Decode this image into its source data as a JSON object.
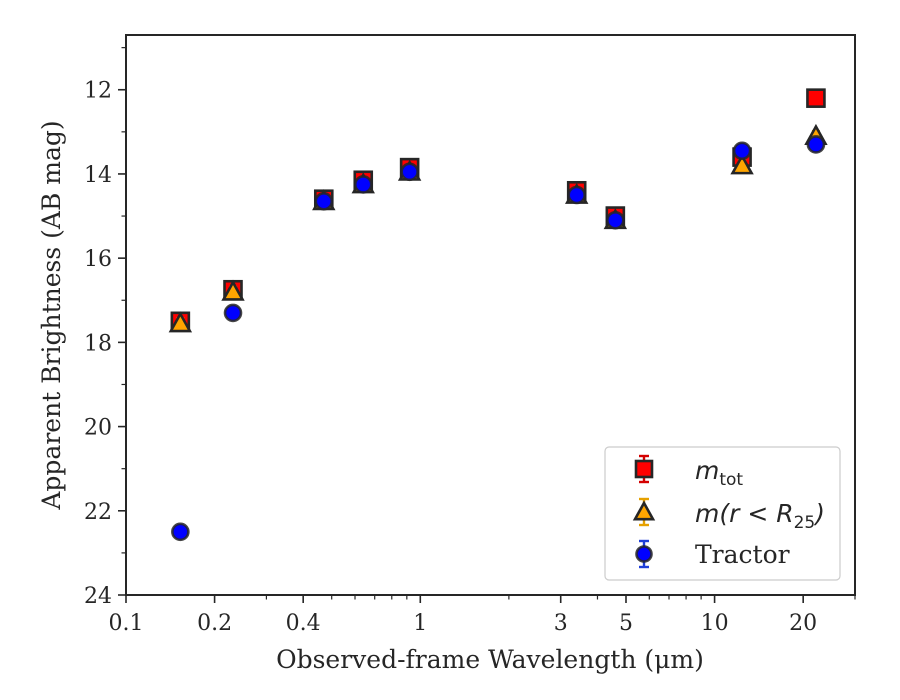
{
  "chart_data": {
    "type": "scatter",
    "xlabel": "Observed-frame Wavelength (μm)",
    "ylabel": "Apparent Brightness (AB mag)",
    "xscale": "log",
    "xlim": [
      0.1,
      30
    ],
    "ylim": [
      24,
      10.7
    ],
    "y_inverted": true,
    "grid": false,
    "legend_position": "lower-right",
    "x_ticks": [
      {
        "value": 0.1,
        "label": "0.1"
      },
      {
        "value": 0.2,
        "label": "0.2"
      },
      {
        "value": 0.4,
        "label": "0.4"
      },
      {
        "value": 1,
        "label": "1"
      },
      {
        "value": 3,
        "label": "3"
      },
      {
        "value": 5,
        "label": "5"
      },
      {
        "value": 10,
        "label": "10"
      },
      {
        "value": 20,
        "label": "20"
      }
    ],
    "y_ticks": [
      {
        "value": 12,
        "label": "12"
      },
      {
        "value": 14,
        "label": "14"
      },
      {
        "value": 16,
        "label": "16"
      },
      {
        "value": 18,
        "label": "18"
      },
      {
        "value": 20,
        "label": "20"
      },
      {
        "value": 22,
        "label": "22"
      },
      {
        "value": 24,
        "label": "24"
      }
    ],
    "series": [
      {
        "name": "m_tot",
        "legend_main": "m",
        "legend_sub": "tot",
        "marker": "square",
        "color": "#ff0000",
        "edge_color": "#262626",
        "error_color": "#d40000",
        "points": [
          {
            "x": 0.153,
            "y": 17.5
          },
          {
            "x": 0.231,
            "y": 16.75
          },
          {
            "x": 0.47,
            "y": 14.6
          },
          {
            "x": 0.64,
            "y": 14.15
          },
          {
            "x": 0.92,
            "y": 13.85
          },
          {
            "x": 3.4,
            "y": 14.4
          },
          {
            "x": 4.6,
            "y": 15.0
          },
          {
            "x": 12.4,
            "y": 13.6
          },
          {
            "x": 22.1,
            "y": 12.2
          }
        ]
      },
      {
        "name": "m(r<R_25)",
        "legend_main": "m(r < R",
        "legend_sub": "25",
        "legend_close": ")",
        "marker": "triangle",
        "color": "#ffa500",
        "edge_color": "#262626",
        "error_color": "#e6a100",
        "points": [
          {
            "x": 0.153,
            "y": 17.55
          },
          {
            "x": 0.231,
            "y": 16.8
          },
          {
            "x": 0.47,
            "y": 14.65
          },
          {
            "x": 0.64,
            "y": 14.25
          },
          {
            "x": 0.92,
            "y": 13.95
          },
          {
            "x": 3.4,
            "y": 14.5
          },
          {
            "x": 4.6,
            "y": 15.1
          },
          {
            "x": 12.4,
            "y": 13.8
          },
          {
            "x": 22.1,
            "y": 13.1
          }
        ]
      },
      {
        "name": "Tractor",
        "legend_main": "Tractor",
        "marker": "circle",
        "color": "#0000ff",
        "edge_color": "#262626",
        "error_color": "#1f3fd9",
        "points": [
          {
            "x": 0.153,
            "y": 22.5
          },
          {
            "x": 0.231,
            "y": 17.3
          },
          {
            "x": 0.47,
            "y": 14.65
          },
          {
            "x": 0.64,
            "y": 14.25
          },
          {
            "x": 0.92,
            "y": 13.95
          },
          {
            "x": 3.4,
            "y": 14.5
          },
          {
            "x": 4.6,
            "y": 15.1
          },
          {
            "x": 12.4,
            "y": 13.45
          },
          {
            "x": 22.1,
            "y": 13.3
          }
        ]
      }
    ]
  }
}
